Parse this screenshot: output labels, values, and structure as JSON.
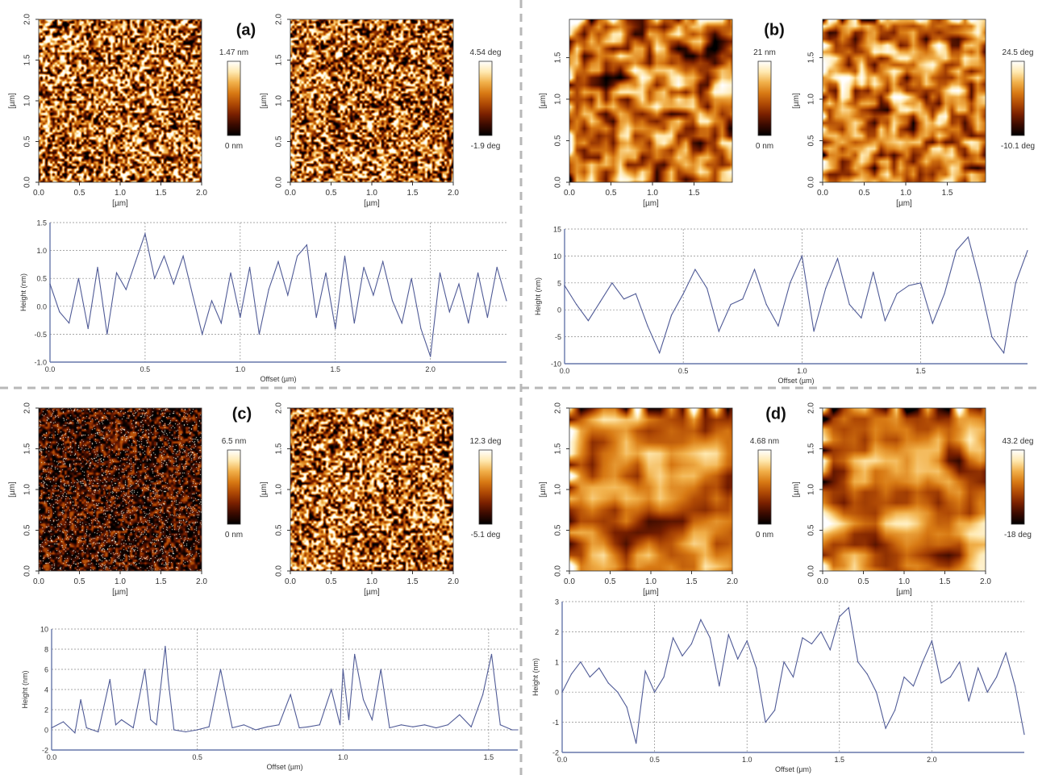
{
  "colors": {
    "cmap": [
      "#000000",
      "#3a0a00",
      "#7a2000",
      "#b04a05",
      "#d87a14",
      "#f1b04a",
      "#ffe9b0",
      "#ffffff"
    ],
    "profile_line": "#4f5a96",
    "grid": "#8a8a8a",
    "separator": "#b8b8b8"
  },
  "chart_data": [
    {
      "panel": "(a)",
      "type": "heatmap",
      "image_kind": "height",
      "xticks": [
        "0.0",
        "0.5",
        "1.0",
        "1.5",
        "2.0"
      ],
      "yticks": [
        "0.0",
        "0.5",
        "1.0",
        "1.5",
        "2.0"
      ],
      "xlabel": "[µm]",
      "ylabel": "[µm]",
      "colorbar": {
        "max": "1.47 nm",
        "min": "0 nm"
      },
      "texture": {
        "seed": 11,
        "scale": 3,
        "blur": 0,
        "gamma": 1.0,
        "spots": 0
      }
    },
    {
      "type": "heatmap",
      "image_kind": "phase",
      "xticks": [
        "0.0",
        "0.5",
        "1.0",
        "1.5",
        "2.0"
      ],
      "yticks": [
        "0.0",
        "0.5",
        "1.0",
        "1.5",
        "2.0"
      ],
      "xlabel": "[µm]",
      "ylabel": "[µm]",
      "colorbar": {
        "max": "4.54 deg",
        "min": "-1.9 deg"
      },
      "texture": {
        "seed": 23,
        "scale": 3,
        "blur": 0,
        "gamma": 1.0,
        "spots": 0
      }
    },
    {
      "type": "line",
      "xlabel": "Offset (µm)",
      "ylabel": "Height (nm)",
      "xlim": [
        0,
        2.4
      ],
      "ylim": [
        -1.0,
        1.5
      ],
      "xticks": [
        0.0,
        0.5,
        1.0,
        1.5,
        2.0
      ],
      "yticks": [
        -1.0,
        -0.5,
        0.0,
        0.5,
        1.0,
        1.5
      ],
      "x": [
        0,
        0.05,
        0.1,
        0.15,
        0.2,
        0.25,
        0.3,
        0.35,
        0.4,
        0.45,
        0.5,
        0.55,
        0.6,
        0.65,
        0.7,
        0.75,
        0.8,
        0.85,
        0.9,
        0.95,
        1.0,
        1.05,
        1.1,
        1.15,
        1.2,
        1.25,
        1.3,
        1.35,
        1.4,
        1.45,
        1.5,
        1.55,
        1.6,
        1.65,
        1.7,
        1.75,
        1.8,
        1.85,
        1.9,
        1.95,
        2.0,
        2.05,
        2.1,
        2.15,
        2.2,
        2.25,
        2.3,
        2.35,
        2.4
      ],
      "y": [
        0.4,
        -0.1,
        -0.3,
        0.5,
        -0.4,
        0.7,
        -0.5,
        0.6,
        0.3,
        0.8,
        1.3,
        0.5,
        0.9,
        0.4,
        0.9,
        0.2,
        -0.5,
        0.1,
        -0.3,
        0.6,
        -0.2,
        0.7,
        -0.5,
        0.3,
        0.8,
        0.2,
        0.9,
        1.1,
        -0.2,
        0.6,
        -0.4,
        0.9,
        -0.3,
        0.7,
        0.2,
        0.8,
        0.1,
        -0.3,
        0.5,
        -0.4,
        -0.9,
        0.6,
        -0.1,
        0.4,
        -0.3,
        0.6,
        -0.2,
        0.7,
        0.1
      ]
    },
    {
      "panel": "(b)",
      "type": "heatmap",
      "image_kind": "height",
      "xticks": [
        "0.0",
        "0.5",
        "1.0",
        "1.5"
      ],
      "yticks": [
        "0.0",
        "0.5",
        "1.0",
        "1.5"
      ],
      "xlabel": "[µm]",
      "ylabel": "[µm]",
      "colorbar": {
        "max": "21 nm",
        "min": "0 nm"
      },
      "texture": {
        "seed": 37,
        "scale": 9,
        "blur": 1,
        "gamma": 0.9,
        "spots": 0
      }
    },
    {
      "type": "heatmap",
      "image_kind": "phase",
      "xticks": [
        "0.0",
        "0.5",
        "1.0",
        "1.5"
      ],
      "yticks": [
        "0.0",
        "0.5",
        "1.0",
        "1.5"
      ],
      "xlabel": "[µm]",
      "ylabel": "[µm]",
      "colorbar": {
        "max": "24.5 deg",
        "min": "-10.1 deg"
      },
      "texture": {
        "seed": 41,
        "scale": 8,
        "blur": 1,
        "gamma": 0.8,
        "spots": 0
      }
    },
    {
      "type": "line",
      "xlabel": "Offset (µm)",
      "ylabel": "Height (nm)",
      "xlim": [
        0,
        1.95
      ],
      "ylim": [
        -10,
        15
      ],
      "xticks": [
        0.0,
        0.5,
        1.0,
        1.5
      ],
      "yticks": [
        -10,
        -5,
        0,
        5,
        10,
        15
      ],
      "x": [
        0,
        0.05,
        0.1,
        0.15,
        0.2,
        0.25,
        0.3,
        0.35,
        0.4,
        0.45,
        0.5,
        0.55,
        0.6,
        0.65,
        0.7,
        0.75,
        0.8,
        0.85,
        0.9,
        0.95,
        1.0,
        1.05,
        1.1,
        1.15,
        1.2,
        1.25,
        1.3,
        1.35,
        1.4,
        1.45,
        1.5,
        1.55,
        1.6,
        1.65,
        1.7,
        1.75,
        1.8,
        1.85,
        1.9,
        1.95
      ],
      "y": [
        4.5,
        1.0,
        -2.0,
        1.5,
        5.0,
        2.0,
        3.0,
        -3.0,
        -8.0,
        -1.0,
        3.0,
        7.5,
        4.0,
        -4.0,
        1.0,
        2.0,
        7.5,
        1.0,
        -3.0,
        5.0,
        10.0,
        -4.0,
        4.0,
        9.5,
        1.0,
        -1.5,
        7.0,
        -2.0,
        3.0,
        4.5,
        5.0,
        -2.5,
        3.0,
        11.0,
        13.5,
        5.0,
        -5.0,
        -8.0,
        5.0,
        11.0
      ]
    },
    {
      "panel": "(c)",
      "type": "heatmap",
      "image_kind": "height",
      "xticks": [
        "0.0",
        "0.5",
        "1.0",
        "1.5",
        "2.0"
      ],
      "yticks": [
        "0.0",
        "0.5",
        "1.0",
        "1.5",
        "2.0"
      ],
      "xlabel": "[µm]",
      "ylabel": "[µm]",
      "colorbar": {
        "max": "6.5 nm",
        "min": "0 nm"
      },
      "texture": {
        "seed": 53,
        "scale": 3,
        "blur": 0,
        "gamma": 1.6,
        "spots": 0.055
      }
    },
    {
      "type": "heatmap",
      "image_kind": "phase",
      "xticks": [
        "0.0",
        "0.5",
        "1.0",
        "1.5",
        "2.0"
      ],
      "yticks": [
        "0.0",
        "0.5",
        "1.0",
        "1.5",
        "2.0"
      ],
      "xlabel": "[µm]",
      "ylabel": "[µm]",
      "colorbar": {
        "max": "12.3 deg",
        "min": "-5.1 deg"
      },
      "texture": {
        "seed": 67,
        "scale": 3,
        "blur": 0,
        "gamma": 1.0,
        "spots": 0
      }
    },
    {
      "type": "line",
      "xlabel": "Offset (µm)",
      "ylabel": "Height (nm)",
      "xlim": [
        0,
        1.6
      ],
      "ylim": [
        -2,
        10
      ],
      "xticks": [
        0.0,
        0.5,
        1.0,
        1.5
      ],
      "yticks": [
        -2,
        0,
        2,
        4,
        6,
        8,
        10
      ],
      "x": [
        0,
        0.04,
        0.08,
        0.1,
        0.12,
        0.16,
        0.2,
        0.22,
        0.24,
        0.28,
        0.32,
        0.34,
        0.36,
        0.39,
        0.4,
        0.42,
        0.46,
        0.5,
        0.54,
        0.58,
        0.62,
        0.66,
        0.7,
        0.74,
        0.78,
        0.82,
        0.85,
        0.88,
        0.92,
        0.96,
        0.99,
        1.0,
        1.02,
        1.04,
        1.07,
        1.1,
        1.13,
        1.16,
        1.2,
        1.24,
        1.28,
        1.32,
        1.36,
        1.4,
        1.44,
        1.48,
        1.51,
        1.54,
        1.58,
        1.6
      ],
      "y": [
        0.2,
        0.8,
        -0.3,
        3.0,
        0.2,
        -0.2,
        5.0,
        0.5,
        1.0,
        0.2,
        6.0,
        1.0,
        0.5,
        8.3,
        5.0,
        0.0,
        -0.2,
        0.0,
        0.3,
        6.0,
        0.2,
        0.5,
        0.0,
        0.3,
        0.5,
        3.5,
        0.2,
        0.3,
        0.5,
        4.0,
        0.5,
        6.0,
        1.0,
        7.5,
        3.0,
        1.0,
        6.0,
        0.2,
        0.5,
        0.3,
        0.5,
        0.2,
        0.5,
        1.5,
        0.3,
        3.5,
        7.5,
        0.5,
        0.0,
        0.0
      ]
    },
    {
      "panel": "(d)",
      "type": "heatmap",
      "image_kind": "height",
      "xticks": [
        "0.0",
        "0.5",
        "1.0",
        "1.5",
        "2.0"
      ],
      "yticks": [
        "0.0",
        "0.5",
        "1.0",
        "1.5",
        "2.0"
      ],
      "xlabel": "[µm]",
      "ylabel": "[µm]",
      "colorbar": {
        "max": "4.68 nm",
        "min": "0 nm"
      },
      "texture": {
        "seed": 79,
        "scale": 14,
        "blur": 2,
        "gamma": 0.9,
        "spots": 0
      }
    },
    {
      "type": "heatmap",
      "image_kind": "phase",
      "xticks": [
        "0.0",
        "0.5",
        "1.0",
        "1.5",
        "2.0"
      ],
      "yticks": [
        "0.0",
        "0.5",
        "1.0",
        "1.5",
        "2.0"
      ],
      "xlabel": "[µm]",
      "ylabel": "[µm]",
      "colorbar": {
        "max": "43.2 deg",
        "min": "-18 deg"
      },
      "texture": {
        "seed": 83,
        "scale": 13,
        "blur": 2,
        "gamma": 0.8,
        "spots": 0
      }
    },
    {
      "type": "line",
      "xlabel": "Offset (µm)",
      "ylabel": "Height (nm)",
      "xlim": [
        0,
        2.5
      ],
      "ylim": [
        -2,
        3
      ],
      "xticks": [
        0.0,
        0.5,
        1.0,
        1.5,
        2.0
      ],
      "yticks": [
        -2,
        -1,
        0,
        1,
        2,
        3
      ],
      "x": [
        0,
        0.05,
        0.1,
        0.15,
        0.2,
        0.25,
        0.3,
        0.35,
        0.4,
        0.45,
        0.5,
        0.55,
        0.6,
        0.65,
        0.7,
        0.75,
        0.8,
        0.85,
        0.9,
        0.95,
        1.0,
        1.05,
        1.1,
        1.15,
        1.2,
        1.25,
        1.3,
        1.35,
        1.4,
        1.45,
        1.5,
        1.55,
        1.6,
        1.65,
        1.7,
        1.75,
        1.8,
        1.85,
        1.9,
        1.95,
        2.0,
        2.05,
        2.1,
        2.15,
        2.2,
        2.25,
        2.3,
        2.35,
        2.4,
        2.45,
        2.5
      ],
      "y": [
        0.0,
        0.6,
        1.0,
        0.5,
        0.8,
        0.3,
        0.0,
        -0.5,
        -1.7,
        0.7,
        0.0,
        0.5,
        1.8,
        1.2,
        1.6,
        2.4,
        1.8,
        0.2,
        1.9,
        1.1,
        1.7,
        0.8,
        -1.0,
        -0.6,
        1.0,
        0.5,
        1.8,
        1.6,
        2.0,
        1.4,
        2.5,
        2.8,
        1.0,
        0.6,
        0.0,
        -1.2,
        -0.6,
        0.5,
        0.2,
        1.0,
        1.7,
        0.3,
        0.5,
        1.0,
        -0.3,
        0.8,
        0.0,
        0.5,
        1.3,
        0.2,
        -1.4
      ]
    }
  ]
}
